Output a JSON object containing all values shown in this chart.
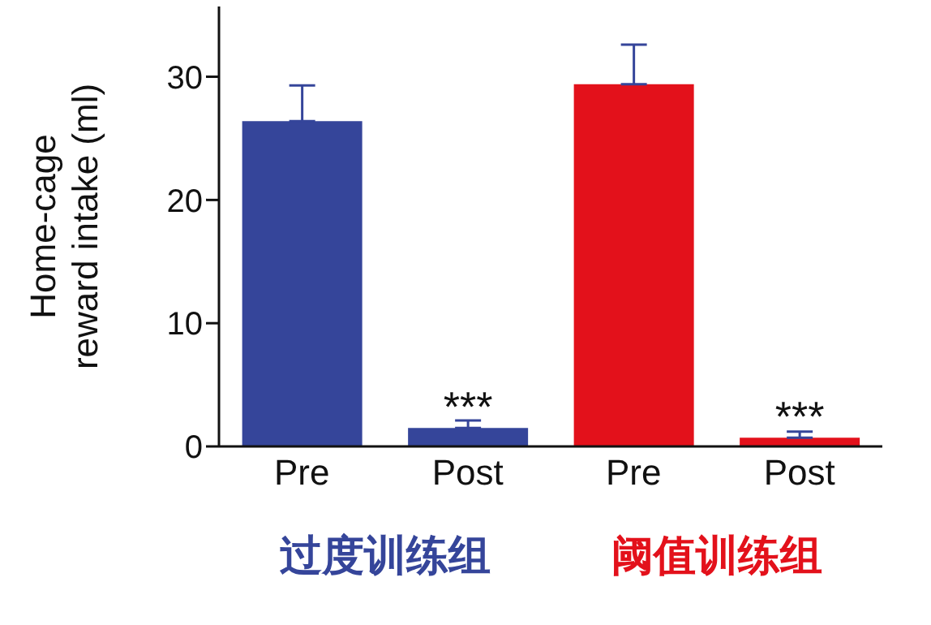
{
  "chart_data": {
    "type": "bar",
    "ylabel": "Home-cage reward intake (ml)",
    "categories": [
      "Pre",
      "Post",
      "Pre",
      "Post"
    ],
    "values": [
      26.4,
      1.5,
      29.4,
      0.7
    ],
    "colors": [
      "#35459a",
      "#35459a",
      "#e3111b",
      "#e3111b"
    ],
    "errors": [
      [
        26.4,
        29.3
      ],
      [
        1.5,
        2.1
      ],
      [
        29.4,
        32.6
      ],
      [
        0.7,
        1.2
      ]
    ],
    "value_labels": [
      null,
      "***",
      null,
      "***"
    ],
    "annotations": [
      "过度训练组",
      "阈值训练组"
    ],
    "ylim": [
      0,
      35.7
    ],
    "yticks": [
      0,
      10,
      20,
      30
    ],
    "grid": false,
    "legend": false
  }
}
